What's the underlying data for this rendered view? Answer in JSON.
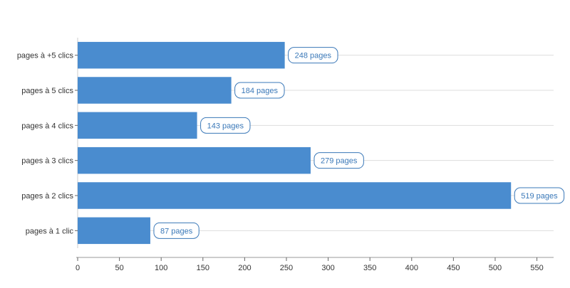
{
  "chart_data": {
    "type": "bar",
    "orientation": "horizontal",
    "categories": [
      "pages à +5 clics",
      "pages à 5 clics",
      "pages à 4 clics",
      "pages à 3 clics",
      "pages à 2 clics",
      "pages à 1 clic"
    ],
    "values": [
      248,
      184,
      143,
      279,
      519,
      87
    ],
    "data_labels": [
      "248 pages",
      "184 pages",
      "143 pages",
      "279 pages",
      "519 pages",
      "87 pages"
    ],
    "x_ticks": [
      "0",
      "50",
      "100",
      "150",
      "200",
      "250",
      "300",
      "350",
      "400",
      "450",
      "500",
      "550"
    ],
    "xlim": [
      0,
      570
    ],
    "title": "",
    "xlabel": "",
    "ylabel": "",
    "grid": "horizontal gridlines per category",
    "legend": "none"
  },
  "colors": {
    "bar": "#4a8ccf",
    "label_text": "#3a78b8",
    "label_border": "#3a78b8",
    "grid": "#dddddd",
    "axis": "#cccccc"
  }
}
